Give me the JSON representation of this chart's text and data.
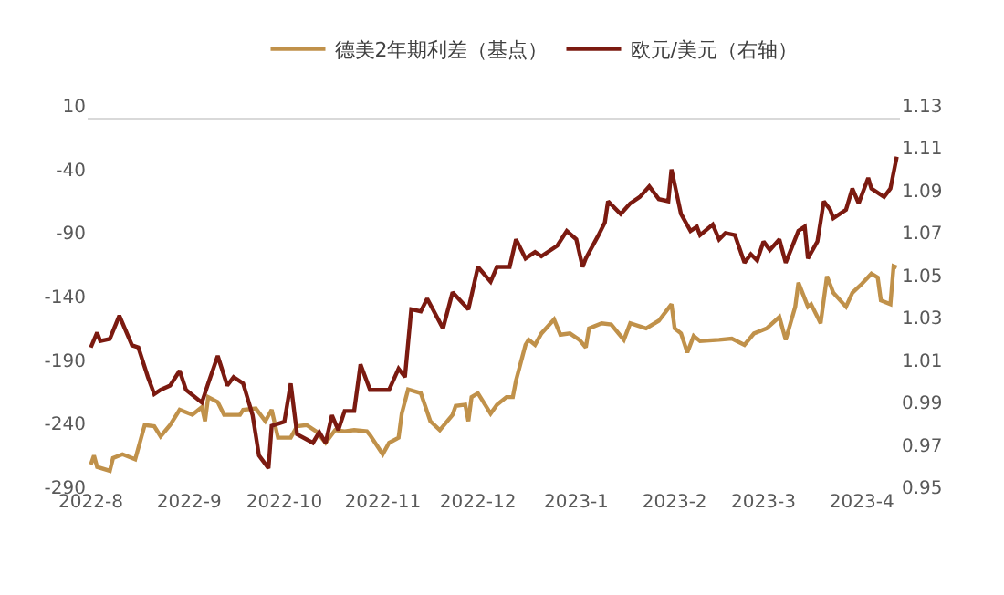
{
  "chart_data": {
    "type": "line",
    "legend": "top",
    "grid": false,
    "marker": "none",
    "line_style": "solid",
    "xlim": [
      "2022-07-31",
      "2023-04-13"
    ],
    "xticks": [
      {
        "value": "2022-08-01",
        "label": "2022-8"
      },
      {
        "value": "2022-09-01",
        "label": "2022-9"
      },
      {
        "value": "2022-10-01",
        "label": "2022-10"
      },
      {
        "value": "2022-11-01",
        "label": "2022-11"
      },
      {
        "value": "2022-12-01",
        "label": "2022-12"
      },
      {
        "value": "2023-01-01",
        "label": "2023-1"
      },
      {
        "value": "2023-02-01",
        "label": "2023-2"
      },
      {
        "value": "2023-03-01",
        "label": "2023-3"
      },
      {
        "value": "2023-04-01",
        "label": "2023-4"
      }
    ],
    "ylim": [
      -290,
      10
    ],
    "yticks": [
      -290,
      -240,
      -190,
      -140,
      -90,
      -40,
      10
    ],
    "y2lim": [
      0.95,
      1.13
    ],
    "y2ticks": [
      0.95,
      0.97,
      0.99,
      1.01,
      1.03,
      1.05,
      1.07,
      1.09,
      1.11,
      1.13
    ],
    "ref_lines": [
      {
        "axis": "y",
        "value": 0,
        "color": "#d9d9d9"
      }
    ],
    "series": [
      {
        "name": "德美2年期利差（基点）",
        "color": "#c0914a",
        "x": [
          "2022-08-01",
          "2022-08-02",
          "2022-08-03",
          "2022-08-07",
          "2022-08-08",
          "2022-08-11",
          "2022-08-15",
          "2022-08-18",
          "2022-08-21",
          "2022-08-23",
          "2022-08-26",
          "2022-08-29",
          "2022-09-02",
          "2022-09-05",
          "2022-09-06",
          "2022-09-07",
          "2022-09-10",
          "2022-09-12",
          "2022-09-17",
          "2022-09-18",
          "2022-09-22",
          "2022-09-25",
          "2022-09-27",
          "2022-09-29",
          "2022-10-03",
          "2022-10-05",
          "2022-10-08",
          "2022-10-11",
          "2022-10-14",
          "2022-10-17",
          "2022-10-20",
          "2022-10-23",
          "2022-10-27",
          "2022-10-28",
          "2022-11-01",
          "2022-11-03",
          "2022-11-06",
          "2022-11-07",
          "2022-11-09",
          "2022-11-13",
          "2022-11-16",
          "2022-11-19",
          "2022-11-20",
          "2022-11-23",
          "2022-11-24",
          "2022-11-27",
          "2022-11-28",
          "2022-11-29",
          "2022-12-01",
          "2022-12-05",
          "2022-12-07",
          "2022-12-10",
          "2022-12-12",
          "2022-12-13",
          "2022-12-16",
          "2022-12-17",
          "2022-12-19",
          "2022-12-21",
          "2022-12-25",
          "2022-12-27",
          "2022-12-30",
          "2023-01-02",
          "2023-01-04",
          "2023-01-05",
          "2023-01-09",
          "2023-01-12",
          "2023-01-16",
          "2023-01-18",
          "2023-01-23",
          "2023-01-27",
          "2023-01-31",
          "2023-02-01",
          "2023-02-03",
          "2023-02-05",
          "2023-02-07",
          "2023-02-09",
          "2023-02-15",
          "2023-02-19",
          "2023-02-23",
          "2023-02-26",
          "2023-03-02",
          "2023-03-06",
          "2023-03-08",
          "2023-03-11",
          "2023-03-12",
          "2023-03-15",
          "2023-03-16",
          "2023-03-19",
          "2023-03-21",
          "2023-03-23",
          "2023-03-27",
          "2023-03-29",
          "2023-04-01",
          "2023-04-04",
          "2023-04-06",
          "2023-04-07",
          "2023-04-10",
          "2023-04-11",
          "2023-04-12"
        ],
        "values": [
          -272,
          -265,
          -274,
          -277,
          -267,
          -264,
          -268,
          -241,
          -242,
          -250,
          -241,
          -229,
          -233,
          -227,
          -238,
          -219,
          -223,
          -233,
          -233,
          -229,
          -228,
          -238,
          -229,
          -251,
          -251,
          -242,
          -241,
          -246,
          -255,
          -245,
          -246,
          -245,
          -246,
          -249,
          -264,
          -255,
          -251,
          -232,
          -213,
          -216,
          -238,
          -245,
          -242,
          -233,
          -226,
          -225,
          -238,
          -219,
          -216,
          -232,
          -225,
          -219,
          -219,
          -206,
          -178,
          -174,
          -178,
          -169,
          -158,
          -170,
          -169,
          -174,
          -180,
          -165,
          -161,
          -162,
          -174,
          -161,
          -165,
          -159,
          -146,
          -165,
          -169,
          -184,
          -171,
          -175,
          -174,
          -173,
          -178,
          -169,
          -165,
          -156,
          -174,
          -148,
          -129,
          -148,
          -146,
          -161,
          -124,
          -137,
          -148,
          -137,
          -130,
          -122,
          -125,
          -143,
          -146,
          -116,
          -117
        ]
      },
      {
        "name": "欧元/美元（右轴）",
        "color": "#7b1a10",
        "axis": "y2",
        "x": [
          "2022-08-01",
          "2022-08-03",
          "2022-08-04",
          "2022-08-07",
          "2022-08-10",
          "2022-08-14",
          "2022-08-16",
          "2022-08-19",
          "2022-08-21",
          "2022-08-23",
          "2022-08-26",
          "2022-08-29",
          "2022-08-31",
          "2022-09-05",
          "2022-09-07",
          "2022-09-10",
          "2022-09-13",
          "2022-09-15",
          "2022-09-18",
          "2022-09-21",
          "2022-09-23",
          "2022-09-26",
          "2022-09-27",
          "2022-10-01",
          "2022-10-03",
          "2022-10-05",
          "2022-10-10",
          "2022-10-12",
          "2022-10-14",
          "2022-10-16",
          "2022-10-18",
          "2022-10-20",
          "2022-10-23",
          "2022-10-25",
          "2022-10-28",
          "2022-11-03",
          "2022-11-06",
          "2022-11-08",
          "2022-11-10",
          "2022-11-13",
          "2022-11-15",
          "2022-11-20",
          "2022-11-23",
          "2022-11-28",
          "2022-12-01",
          "2022-12-05",
          "2022-12-07",
          "2022-12-11",
          "2022-12-13",
          "2022-12-16",
          "2022-12-19",
          "2022-12-21",
          "2022-12-26",
          "2022-12-29",
          "2023-01-01",
          "2023-01-03",
          "2023-01-04",
          "2023-01-08",
          "2023-01-10",
          "2023-01-11",
          "2023-01-15",
          "2023-01-18",
          "2023-01-21",
          "2023-01-24",
          "2023-01-27",
          "2023-01-30",
          "2023-01-31",
          "2023-02-03",
          "2023-02-06",
          "2023-02-08",
          "2023-02-09",
          "2023-02-13",
          "2023-02-15",
          "2023-02-17",
          "2023-02-20",
          "2023-02-23",
          "2023-02-25",
          "2023-02-27",
          "2023-03-01",
          "2023-03-03",
          "2023-03-06",
          "2023-03-08",
          "2023-03-12",
          "2023-03-14",
          "2023-03-15",
          "2023-03-18",
          "2023-03-20",
          "2023-03-22",
          "2023-03-23",
          "2023-03-27",
          "2023-03-29",
          "2023-03-31",
          "2023-04-03",
          "2023-04-04",
          "2023-04-08",
          "2023-04-10",
          "2023-04-12"
        ],
        "values": [
          1.016,
          1.023,
          1.019,
          1.02,
          1.031,
          1.017,
          1.016,
          1.002,
          0.994,
          0.996,
          0.998,
          1.005,
          0.996,
          0.99,
          0.999,
          1.012,
          0.998,
          1.002,
          0.999,
          0.984,
          0.965,
          0.959,
          0.979,
          0.981,
          0.999,
          0.975,
          0.971,
          0.976,
          0.971,
          0.984,
          0.977,
          0.986,
          0.986,
          1.008,
          0.996,
          0.996,
          1.006,
          1.002,
          1.034,
          1.033,
          1.039,
          1.025,
          1.042,
          1.034,
          1.054,
          1.047,
          1.054,
          1.054,
          1.067,
          1.058,
          1.061,
          1.059,
          1.064,
          1.071,
          1.067,
          1.054,
          1.058,
          1.069,
          1.075,
          1.085,
          1.079,
          1.084,
          1.087,
          1.092,
          1.086,
          1.085,
          1.1,
          1.079,
          1.071,
          1.073,
          1.069,
          1.074,
          1.067,
          1.07,
          1.069,
          1.056,
          1.06,
          1.057,
          1.066,
          1.062,
          1.067,
          1.056,
          1.071,
          1.073,
          1.058,
          1.066,
          1.085,
          1.081,
          1.077,
          1.081,
          1.091,
          1.084,
          1.096,
          1.091,
          1.087,
          1.091,
          1.106
        ]
      }
    ]
  }
}
